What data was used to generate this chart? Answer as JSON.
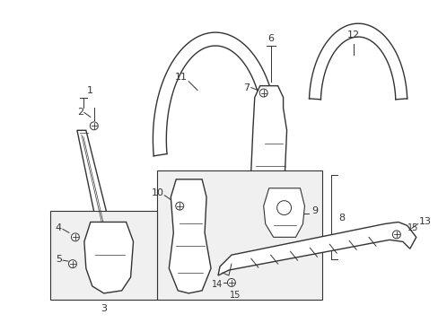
{
  "background_color": "#ffffff",
  "fig_width": 4.89,
  "fig_height": 3.6,
  "dpi": 100,
  "gray": "#333333",
  "light_gray": "#e8e8e8"
}
